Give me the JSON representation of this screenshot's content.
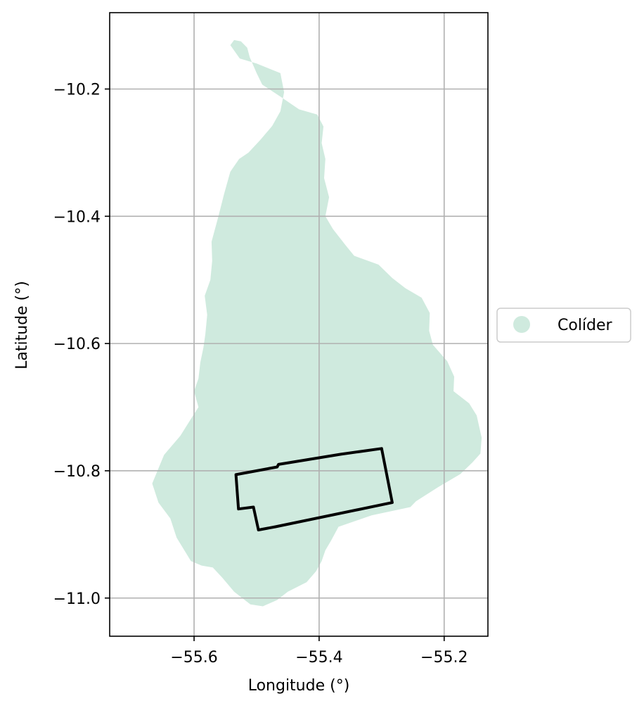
{
  "chart_data": {
    "type": "map",
    "xlabel": "Longitude (°)",
    "ylabel": "Latitude (°)",
    "xlim": [
      -55.735,
      -55.13
    ],
    "ylim": [
      -11.06,
      -10.08
    ],
    "x_ticks": [
      -55.6,
      -55.4,
      -55.2
    ],
    "x_tick_labels": [
      "−55.6",
      "−55.4",
      "−55.2"
    ],
    "y_ticks": [
      -10.2,
      -10.4,
      -10.6,
      -10.8,
      -11.0
    ],
    "y_tick_labels": [
      "−10.2",
      "−10.4",
      "−10.6",
      "−10.8",
      "−11.0"
    ],
    "grid": true,
    "legend": {
      "placement": "center-right outside",
      "entries": [
        {
          "label": "Colíder",
          "color": "#cfeade"
        }
      ]
    },
    "region": {
      "name": "Colíder",
      "fill": "#cfeade",
      "boundary": [
        [
          -55.542,
          -10.131
        ],
        [
          -55.536,
          -10.123
        ],
        [
          -55.525,
          -10.125
        ],
        [
          -55.515,
          -10.135
        ],
        [
          -55.511,
          -10.15
        ],
        [
          -55.5,
          -10.175
        ],
        [
          -55.491,
          -10.193
        ],
        [
          -55.462,
          -10.212
        ],
        [
          -55.432,
          -10.232
        ],
        [
          -55.403,
          -10.24
        ],
        [
          -55.393,
          -10.259
        ],
        [
          -55.396,
          -10.285
        ],
        [
          -55.39,
          -10.31
        ],
        [
          -55.392,
          -10.34
        ],
        [
          -55.384,
          -10.37
        ],
        [
          -55.39,
          -10.4
        ],
        [
          -55.378,
          -10.42
        ],
        [
          -55.358,
          -10.445
        ],
        [
          -55.344,
          -10.462
        ],
        [
          -55.305,
          -10.476
        ],
        [
          -55.283,
          -10.497
        ],
        [
          -55.262,
          -10.513
        ],
        [
          -55.236,
          -10.528
        ],
        [
          -55.223,
          -10.552
        ],
        [
          -55.224,
          -10.58
        ],
        [
          -55.218,
          -10.602
        ],
        [
          -55.195,
          -10.628
        ],
        [
          -55.184,
          -10.652
        ],
        [
          -55.185,
          -10.675
        ],
        [
          -55.16,
          -10.694
        ],
        [
          -55.148,
          -10.713
        ],
        [
          -55.14,
          -10.748
        ],
        [
          -55.142,
          -10.773
        ],
        [
          -55.155,
          -10.787
        ],
        [
          -55.174,
          -10.805
        ],
        [
          -55.21,
          -10.826
        ],
        [
          -55.245,
          -10.848
        ],
        [
          -55.254,
          -10.857
        ],
        [
          -55.316,
          -10.87
        ],
        [
          -55.369,
          -10.888
        ],
        [
          -55.381,
          -10.91
        ],
        [
          -55.39,
          -10.925
        ],
        [
          -55.396,
          -10.942
        ],
        [
          -55.405,
          -10.958
        ],
        [
          -55.42,
          -10.975
        ],
        [
          -55.45,
          -10.99
        ],
        [
          -55.467,
          -11.003
        ],
        [
          -55.49,
          -11.013
        ],
        [
          -55.51,
          -11.01
        ],
        [
          -55.536,
          -10.99
        ],
        [
          -55.555,
          -10.968
        ],
        [
          -55.57,
          -10.952
        ],
        [
          -55.588,
          -10.949
        ],
        [
          -55.605,
          -10.942
        ],
        [
          -55.628,
          -10.905
        ],
        [
          -55.638,
          -10.875
        ],
        [
          -55.657,
          -10.85
        ],
        [
          -55.667,
          -10.82
        ],
        [
          -55.648,
          -10.775
        ],
        [
          -55.622,
          -10.745
        ],
        [
          -55.606,
          -10.72
        ],
        [
          -55.593,
          -10.7
        ],
        [
          -55.6,
          -10.675
        ],
        [
          -55.593,
          -10.655
        ],
        [
          -55.59,
          -10.63
        ],
        [
          -55.585,
          -10.606
        ],
        [
          -55.582,
          -10.585
        ],
        [
          -55.579,
          -10.555
        ],
        [
          -55.583,
          -10.525
        ],
        [
          -55.574,
          -10.5
        ],
        [
          -55.571,
          -10.47
        ],
        [
          -55.572,
          -10.44
        ],
        [
          -55.561,
          -10.4
        ],
        [
          -55.552,
          -10.365
        ],
        [
          -55.542,
          -10.33
        ],
        [
          -55.528,
          -10.31
        ],
        [
          -55.513,
          -10.3
        ],
        [
          -55.494,
          -10.28
        ],
        [
          -55.475,
          -10.258
        ],
        [
          -55.462,
          -10.235
        ],
        [
          -55.456,
          -10.205
        ],
        [
          -55.462,
          -10.175
        ],
        [
          -55.5,
          -10.16
        ],
        [
          -55.527,
          -10.152
        ],
        [
          -55.542,
          -10.131
        ]
      ]
    },
    "polygon": {
      "stroke": "#000000",
      "boundary": [
        [
          -55.533,
          -10.806
        ],
        [
          -55.467,
          -10.794
        ],
        [
          -55.465,
          -10.79
        ],
        [
          -55.365,
          -10.774
        ],
        [
          -55.3,
          -10.765
        ],
        [
          -55.283,
          -10.85
        ],
        [
          -55.47,
          -10.888
        ],
        [
          -55.497,
          -10.893
        ],
        [
          -55.505,
          -10.857
        ],
        [
          -55.529,
          -10.86
        ],
        [
          -55.533,
          -10.806
        ]
      ]
    }
  }
}
